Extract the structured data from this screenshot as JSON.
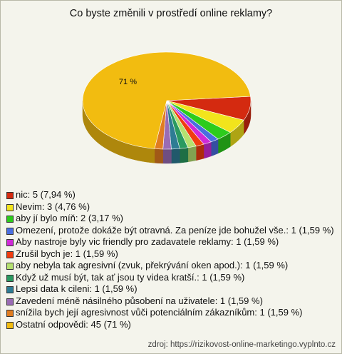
{
  "chart_data": {
    "type": "pie",
    "title": "Co byste změnili v prostředí online reklamy?",
    "categories": [
      "nic: 5 (7,94 %)",
      "Nevim: 3 (4,76 %)",
      "aby jí bylo míň: 2 (3,17 %)",
      "Omezení, protože dokáže být otravná. Za peníze jde bohužel vše.: 1 (1,59 %)",
      "Aby nastroje byly vic friendly pro zadavatele reklamy: 1 (1,59 %)",
      "Zrušil bych je: 1 (1,59 %)",
      "aby nebyla tak agresivní (zvuk, překrývání oken apod.): 1 (1,59 %)",
      "Když už musí být, tak ať jsou ty videa kratší.: 1 (1,59 %)",
      "Lepsi data k cileni: 1 (1,59 %)",
      "Zavedení méně násilného působení na uživatele: 1 (1,59 %)",
      "snížila bych její agresivnost vůči potenciálním zákazníkům: 1 (1,59 %)",
      "Ostatní odpovědi: 45 (71 %)"
    ],
    "values": [
      7.94,
      4.76,
      3.17,
      1.59,
      1.59,
      1.59,
      1.59,
      1.59,
      1.59,
      1.59,
      1.59,
      71
    ],
    "value_labels": [
      null,
      null,
      null,
      null,
      null,
      null,
      null,
      null,
      null,
      null,
      null,
      "71 %"
    ],
    "colors": [
      "#d42a10",
      "#f2e41c",
      "#2ccc1c",
      "#4a6ee0",
      "#d02ad8",
      "#f03c10",
      "#b4e070",
      "#2a9a60",
      "#2e7c94",
      "#9a6cb4",
      "#e07c20",
      "#f2bc10"
    ],
    "source": "zdroj: https://rizikovost-online-marketingo.vyplnto.cz"
  }
}
